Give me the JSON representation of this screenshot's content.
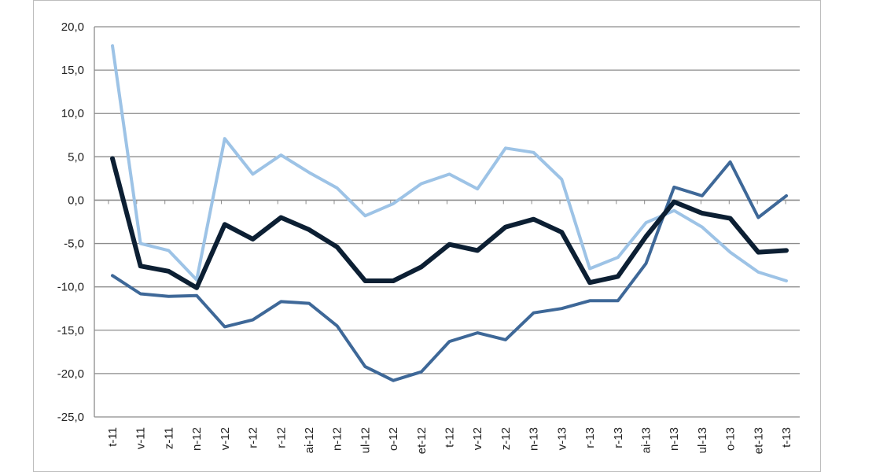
{
  "chart_data": {
    "type": "line",
    "title": "",
    "xlabel": "",
    "ylabel": "",
    "ylim": [
      -25,
      20
    ],
    "y_ticks": [
      "20,0",
      "15,0",
      "10,0",
      "5,0",
      "0,0",
      "-5,0",
      "-10,0",
      "-15,0",
      "-20,0",
      "-25,0"
    ],
    "y_tick_values": [
      20,
      15,
      10,
      5,
      0,
      -5,
      -10,
      -15,
      -20,
      -25
    ],
    "grid": "horizontal",
    "legend": "none",
    "categories": [
      "t-11",
      "v-11",
      "z-11",
      "n-12",
      "v-12",
      "r-12",
      "r-12",
      "ai-12",
      "n-12",
      "ul-12",
      "o-12",
      "et-12",
      "t-12",
      "v-12",
      "z-12",
      "n-13",
      "v-13",
      "r-13",
      "r-13",
      "ai-13",
      "n-13",
      "ul-13",
      "o-13",
      "et-13",
      "t-13"
    ],
    "series": [
      {
        "color": "#9dc3e6",
        "width": 4,
        "values": [
          17.8,
          -5.0,
          -5.8,
          -9.2,
          7.1,
          3.0,
          5.2,
          3.2,
          1.4,
          -1.8,
          -0.4,
          1.9,
          3.0,
          1.3,
          6.0,
          5.5,
          2.4,
          -7.9,
          -6.6,
          -2.6,
          -1.2,
          -3.1,
          -6.0,
          -8.3,
          -9.3
        ]
      },
      {
        "color": "#3e6898",
        "width": 4,
        "values": [
          -8.7,
          -10.8,
          -11.1,
          -11.0,
          -14.6,
          -13.8,
          -11.7,
          -11.9,
          -14.5,
          -19.2,
          -20.8,
          -19.8,
          -16.3,
          -15.3,
          -16.1,
          -13.0,
          -12.5,
          -11.6,
          -11.6,
          -7.3,
          1.5,
          0.5,
          4.4,
          -2.0,
          0.5
        ]
      },
      {
        "color": "#0c1f33",
        "width": 6,
        "values": [
          4.8,
          -7.6,
          -8.2,
          -10.1,
          -2.8,
          -4.5,
          -2.0,
          -3.4,
          -5.4,
          -9.3,
          -9.3,
          -7.7,
          -5.1,
          -5.8,
          -3.1,
          -2.2,
          -3.7,
          -9.5,
          -8.8,
          -4.2,
          -0.2,
          -1.5,
          -2.1,
          -6.0,
          -5.8
        ]
      }
    ]
  },
  "colors": {
    "gridline": "#8c8c8c",
    "axis": "#8c8c8c",
    "frame": "#bdbdbd"
  }
}
